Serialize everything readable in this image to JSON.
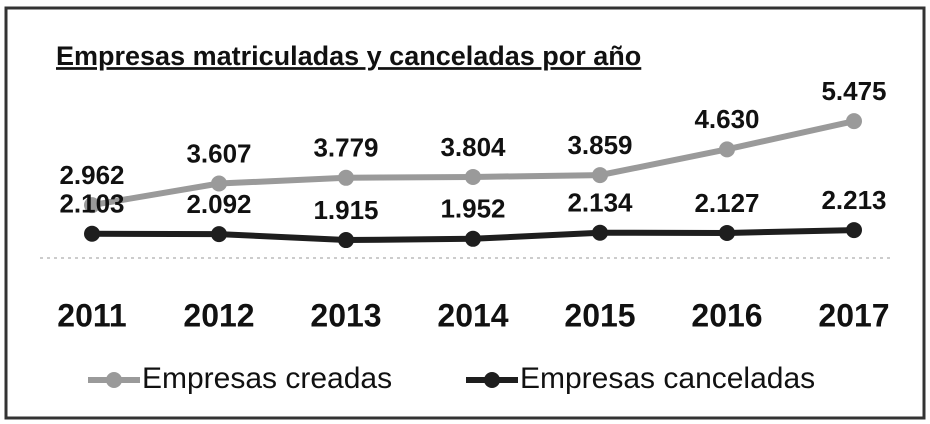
{
  "chart_data": {
    "type": "line",
    "title": "Empresas matriculadas y canceladas por año",
    "categories": [
      "2011",
      "2012",
      "2013",
      "2014",
      "2015",
      "2016",
      "2017"
    ],
    "series": [
      {
        "name": "Empresas creadas",
        "color": "#9a9a9a",
        "values": [
          2962,
          3607,
          3779,
          3804,
          3859,
          4630,
          5475
        ],
        "value_labels": [
          "2.962",
          "3.607",
          "3.779",
          "3.804",
          "3.859",
          "4.630",
          "5.475"
        ]
      },
      {
        "name": "Empresas canceladas",
        "color": "#1e1e1e",
        "values": [
          2103,
          2092,
          1915,
          1952,
          2134,
          2127,
          2213
        ],
        "value_labels": [
          "2.103",
          "2.092",
          "1.915",
          "1.952",
          "2.134",
          "2.127",
          "2.213"
        ]
      }
    ]
  }
}
